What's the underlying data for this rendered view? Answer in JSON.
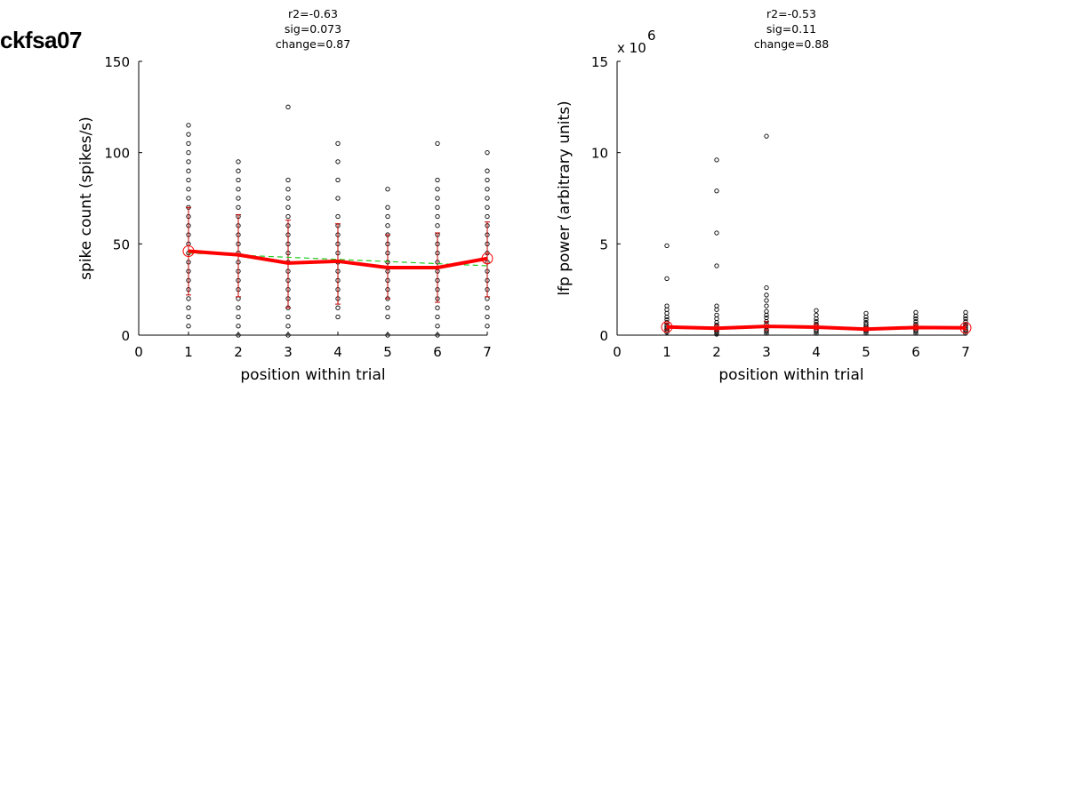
{
  "figure_title": "ckfsa07",
  "chart_data": [
    {
      "type": "scatter",
      "title": "",
      "stats": [
        "r2=-0.63",
        "sig=0.073",
        "change=0.87"
      ],
      "xlabel": "position within trial",
      "ylabel": "spike count (spikes/s)",
      "xlim": [
        0,
        7
      ],
      "ylim": [
        0,
        150
      ],
      "xticks": [
        "0",
        "1",
        "2",
        "3",
        "4",
        "5",
        "6",
        "7"
      ],
      "yticks": [
        "0",
        "50",
        "100",
        "150"
      ],
      "exponent_label": "",
      "grid": false,
      "points": [
        {
          "x": 1,
          "y": [
            5,
            10,
            15,
            20,
            25,
            30,
            35,
            40,
            45,
            50,
            55,
            60,
            65,
            70,
            75,
            80,
            85,
            90,
            95,
            100,
            105,
            110,
            115
          ]
        },
        {
          "x": 2,
          "y": [
            0,
            5,
            10,
            15,
            20,
            25,
            30,
            35,
            40,
            45,
            50,
            55,
            60,
            65,
            70,
            75,
            80,
            85,
            90,
            95
          ]
        },
        {
          "x": 3,
          "y": [
            0,
            5,
            10,
            15,
            20,
            25,
            30,
            35,
            40,
            45,
            50,
            55,
            60,
            65,
            70,
            75,
            80,
            85,
            125
          ]
        },
        {
          "x": 4,
          "y": [
            10,
            15,
            20,
            25,
            30,
            35,
            40,
            45,
            50,
            55,
            60,
            65,
            75,
            85,
            95,
            105
          ]
        },
        {
          "x": 5,
          "y": [
            0,
            10,
            15,
            20,
            25,
            30,
            35,
            40,
            45,
            50,
            55,
            60,
            65,
            70,
            80
          ]
        },
        {
          "x": 6,
          "y": [
            0,
            5,
            10,
            15,
            20,
            25,
            30,
            35,
            40,
            45,
            50,
            55,
            60,
            65,
            70,
            75,
            80,
            85,
            105
          ]
        },
        {
          "x": 7,
          "y": [
            5,
            10,
            15,
            20,
            25,
            30,
            35,
            40,
            45,
            50,
            55,
            60,
            65,
            70,
            75,
            80,
            85,
            90,
            100
          ]
        }
      ],
      "mean": {
        "x": [
          1,
          2,
          3,
          4,
          5,
          6,
          7
        ],
        "y": [
          46,
          44,
          39.5,
          40.5,
          37,
          37,
          42
        ]
      },
      "errorbar": {
        "lower": [
          22,
          21,
          15,
          17,
          20,
          18,
          21
        ],
        "upper": [
          70,
          66,
          63,
          61,
          55,
          56,
          62
        ]
      },
      "fit": {
        "x": [
          1,
          7
        ],
        "y": [
          45,
          38
        ]
      },
      "colors": {
        "points": "#000000",
        "mean": "#ff0000",
        "errorbar": "#c00000",
        "fit": "#22cc22"
      }
    },
    {
      "type": "scatter",
      "title": "",
      "stats": [
        "r2=-0.53",
        "sig=0.11",
        "change=0.88"
      ],
      "xlabel": "position within trial",
      "ylabel": "lfp power (arbitrary units)",
      "xlim": [
        0,
        7
      ],
      "ylim": [
        0,
        15
      ],
      "xticks": [
        "0",
        "1",
        "2",
        "3",
        "4",
        "5",
        "6",
        "7"
      ],
      "yticks": [
        "0",
        "5",
        "10",
        "15"
      ],
      "exponent_label": "x 10",
      "exponent_power": "6",
      "grid": false,
      "points": [
        {
          "x": 1,
          "y": [
            0.15,
            0.25,
            0.35,
            0.45,
            0.55,
            0.7,
            0.85,
            1.0,
            1.2,
            1.4,
            1.6,
            3.1,
            4.9
          ]
        },
        {
          "x": 2,
          "y": [
            0.05,
            0.15,
            0.25,
            0.35,
            0.45,
            0.55,
            0.7,
            0.9,
            1.1,
            1.4,
            1.6,
            3.8,
            5.6,
            7.9,
            9.6
          ]
        },
        {
          "x": 3,
          "y": [
            0.1,
            0.2,
            0.3,
            0.45,
            0.6,
            0.75,
            0.95,
            1.1,
            1.3,
            1.6,
            1.9,
            2.2,
            2.6,
            10.9
          ]
        },
        {
          "x": 4,
          "y": [
            0.1,
            0.2,
            0.3,
            0.4,
            0.5,
            0.6,
            0.75,
            0.9,
            1.1,
            1.35
          ]
        },
        {
          "x": 5,
          "y": [
            0.1,
            0.2,
            0.3,
            0.4,
            0.5,
            0.6,
            0.7,
            0.85,
            1.0,
            1.2
          ]
        },
        {
          "x": 6,
          "y": [
            0.1,
            0.2,
            0.3,
            0.4,
            0.5,
            0.6,
            0.75,
            0.9,
            1.05,
            1.25
          ]
        },
        {
          "x": 7,
          "y": [
            0.1,
            0.2,
            0.3,
            0.4,
            0.5,
            0.6,
            0.75,
            0.9,
            1.05,
            1.25
          ]
        }
      ],
      "mean": {
        "x": [
          1,
          2,
          3,
          4,
          5,
          6,
          7
        ],
        "y": [
          0.45,
          0.38,
          0.48,
          0.44,
          0.33,
          0.42,
          0.4
        ]
      },
      "errorbar": {
        "lower": [
          0.3,
          0.22,
          0.28,
          0.3,
          0.22,
          0.28,
          0.28
        ],
        "upper": [
          0.65,
          0.55,
          0.75,
          0.6,
          0.45,
          0.58,
          0.55
        ]
      },
      "fit": {
        "x": [
          1,
          7
        ],
        "y": [
          0.46,
          0.36
        ]
      },
      "colors": {
        "points": "#000000",
        "mean": "#ff0000",
        "errorbar": "#c00000",
        "fit": "#22cc22"
      }
    }
  ]
}
